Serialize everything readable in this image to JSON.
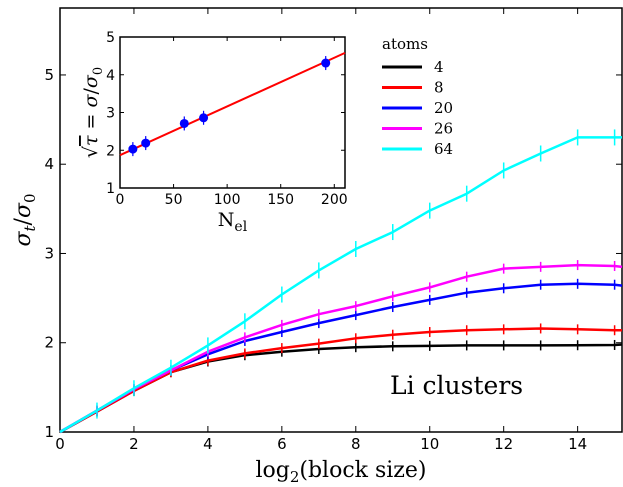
{
  "chart_data": [
    {
      "type": "line",
      "xlabel": "log2(block size)",
      "ylabel": "σt/σ0",
      "xlim": [
        0,
        15.2
      ],
      "ylim": [
        1,
        5.75
      ],
      "xticks": [
        0,
        2,
        4,
        6,
        8,
        10,
        12,
        14
      ],
      "yticks": [
        1,
        2,
        3,
        4,
        5
      ],
      "grid": false,
      "legend": {
        "title": "atoms",
        "placement": "top-right"
      },
      "annotation": "Li clusters",
      "x": [
        0,
        1,
        2,
        3,
        4,
        5,
        6,
        7,
        8,
        9,
        10,
        11,
        12,
        13,
        14,
        15,
        15.2
      ],
      "series": [
        {
          "name": "4",
          "color": "#000000",
          "values": [
            1.0,
            1.23,
            1.46,
            1.67,
            1.79,
            1.86,
            1.9,
            1.93,
            1.95,
            1.96,
            1.965,
            1.97,
            1.97,
            1.97,
            1.972,
            1.975,
            1.98
          ]
        },
        {
          "name": "8",
          "color": "#ff0000",
          "values": [
            1.0,
            1.23,
            1.46,
            1.67,
            1.8,
            1.88,
            1.94,
            1.99,
            2.05,
            2.09,
            2.12,
            2.14,
            2.15,
            2.16,
            2.15,
            2.14,
            2.14
          ]
        },
        {
          "name": "20",
          "color": "#0000ff",
          "values": [
            1.0,
            1.24,
            1.48,
            1.69,
            1.87,
            2.02,
            2.12,
            2.22,
            2.31,
            2.4,
            2.48,
            2.56,
            2.61,
            2.65,
            2.66,
            2.65,
            2.64
          ]
        },
        {
          "name": "26",
          "color": "#ff00ff",
          "values": [
            1.0,
            1.24,
            1.48,
            1.69,
            1.9,
            2.06,
            2.2,
            2.32,
            2.41,
            2.52,
            2.62,
            2.74,
            2.83,
            2.85,
            2.87,
            2.86,
            2.85
          ]
        },
        {
          "name": "64",
          "color": "#00ffff",
          "values": [
            1.0,
            1.24,
            1.49,
            1.72,
            1.97,
            2.24,
            2.54,
            2.81,
            3.05,
            3.24,
            3.48,
            3.67,
            3.93,
            4.12,
            4.3,
            4.3,
            4.3
          ]
        }
      ]
    },
    {
      "type": "scatter",
      "xlabel": "N",
      "xlabel_sub": "el",
      "ylabel": "√τ = σ/σ0",
      "xlim": [
        0,
        210
      ],
      "ylim": [
        1,
        5
      ],
      "xticks": [
        0,
        50,
        100,
        150,
        200
      ],
      "yticks": [
        1,
        2,
        3,
        4,
        5
      ],
      "points_color": "#0000ff",
      "fit_color": "#ff0000",
      "points": [
        {
          "x": 12,
          "y": 2.03
        },
        {
          "x": 24,
          "y": 2.19
        },
        {
          "x": 60,
          "y": 2.71
        },
        {
          "x": 78,
          "y": 2.86
        },
        {
          "x": 192,
          "y": 4.31
        }
      ],
      "fit": {
        "x0": 0,
        "y0": 1.87,
        "x1": 210,
        "y1": 4.58
      }
    }
  ]
}
